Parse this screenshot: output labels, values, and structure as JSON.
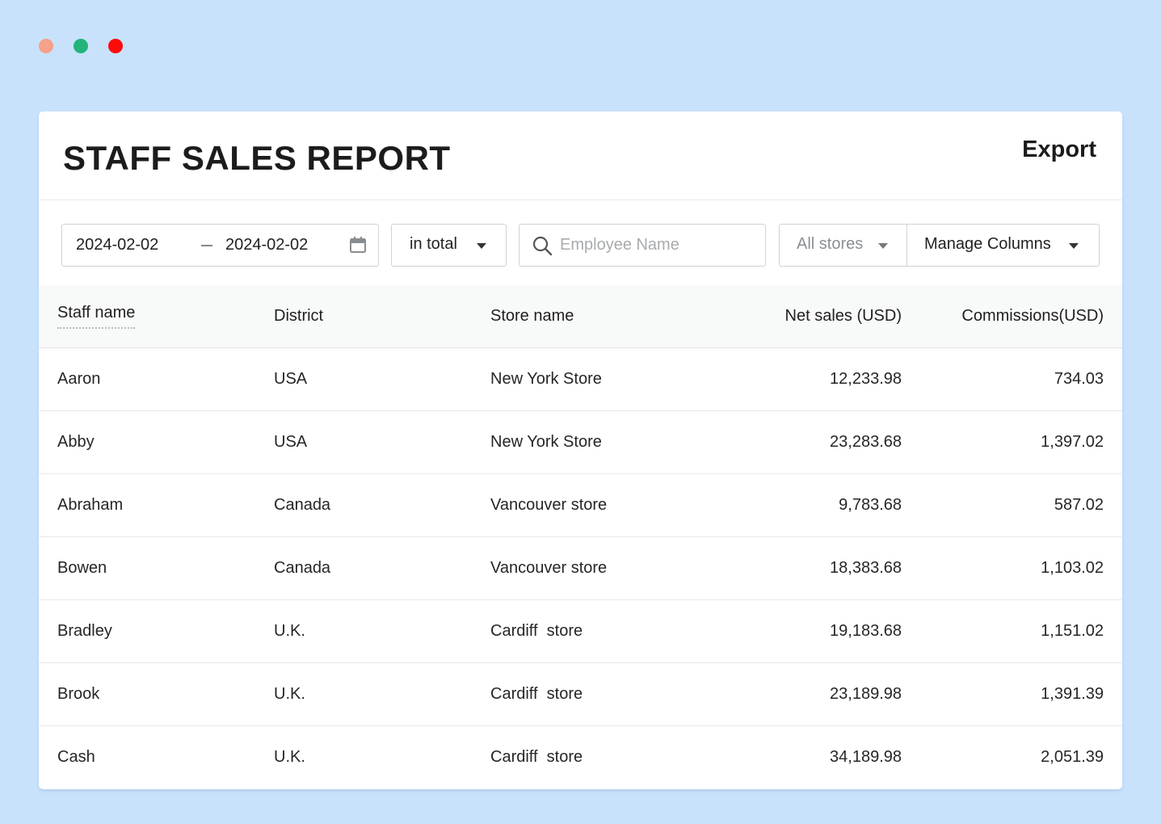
{
  "window": {
    "dots": [
      "#f7a08a",
      "#22b47a",
      "#ff0a0a"
    ]
  },
  "report": {
    "title": "STAFF SALES REPORT",
    "export_label": "Export"
  },
  "filters": {
    "date_start": "2024-02-02",
    "date_end": "2024-02-02",
    "period": "in total",
    "search_placeholder": "Employee Name",
    "store": "All stores",
    "columns": "Manage Columns"
  },
  "table": {
    "headers": [
      "Staff name",
      "District",
      "Store name",
      "Net sales (USD)",
      "Commissions(USD)"
    ],
    "rows": [
      [
        "Aaron",
        "USA",
        "New York Store",
        "12,233.98",
        "734.03"
      ],
      [
        "Abby",
        "USA",
        "New York Store",
        "23,283.68",
        "1,397.02"
      ],
      [
        "Abraham",
        "Canada",
        "Vancouver store",
        "9,783.68",
        "587.02"
      ],
      [
        "Bowen",
        "Canada",
        "Vancouver store",
        "18,383.68",
        "1,103.02"
      ],
      [
        "Bradley",
        "U.K.",
        "Cardiff  store",
        "19,183.68",
        "1,151.02"
      ],
      [
        "Brook",
        "U.K.",
        "Cardiff  store",
        "23,189.98",
        "1,391.39"
      ],
      [
        "Cash",
        "U.K.",
        "Cardiff  store",
        "34,189.98",
        "2,051.39"
      ]
    ]
  }
}
